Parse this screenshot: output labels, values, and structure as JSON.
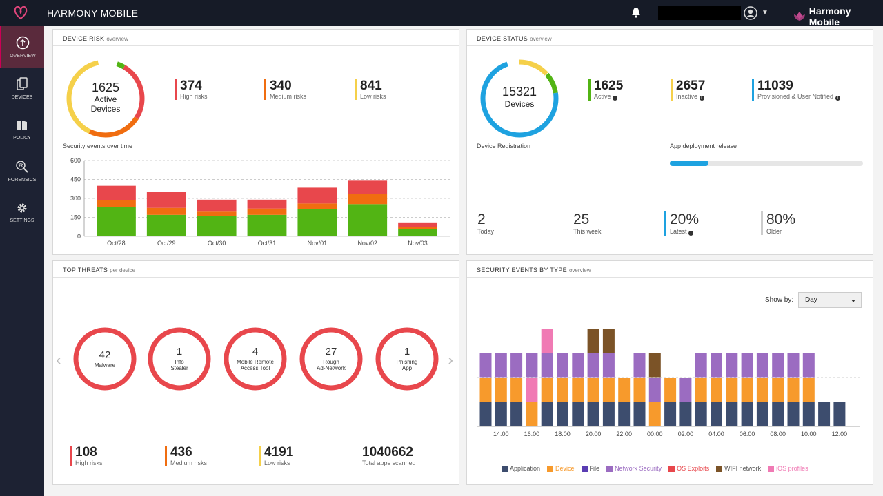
{
  "topbar": {
    "app_title": "HARMONY MOBILE",
    "brand_text": "Harmony Mobile"
  },
  "sidebar": {
    "items": [
      {
        "label": "OVERVIEW",
        "icon": "overview-icon"
      },
      {
        "label": "DEVICES",
        "icon": "devices-icon"
      },
      {
        "label": "POLICY",
        "icon": "policy-icon"
      },
      {
        "label": "FORENSICS",
        "icon": "forensics-icon"
      },
      {
        "label": "SETTINGS",
        "icon": "gear-icon"
      }
    ]
  },
  "device_risk": {
    "title": "DEVICE RISK",
    "subtitle": "overview",
    "donut": {
      "number": "1625",
      "line1": "Active",
      "line2": "Devices"
    },
    "high": {
      "value": "374",
      "label": "High risks"
    },
    "medium": {
      "value": "340",
      "label": "Medium risks"
    },
    "low": {
      "value": "841",
      "label": "Low risks"
    },
    "chart_title": "Security events over time"
  },
  "device_status": {
    "title": "DEVICE STATUS",
    "subtitle": "overview",
    "donut": {
      "number": "15321",
      "label": "Devices"
    },
    "active": {
      "value": "1625",
      "label": "Active"
    },
    "inactive": {
      "value": "2657",
      "label": "Inactive"
    },
    "provisioned": {
      "value": "11039",
      "label": "Provisioned & User Notified"
    },
    "registration_label": "Device Registration",
    "deployment_label": "App deployment release",
    "deployment_progress": 0.2,
    "today": {
      "value": "2",
      "label": "Today"
    },
    "week": {
      "value": "25",
      "label": "This week"
    },
    "latest": {
      "value": "20%",
      "label": "Latest"
    },
    "older": {
      "value": "80%",
      "label": "Older"
    }
  },
  "top_threats": {
    "title": "TOP THREATS",
    "subtitle": "per device",
    "items": [
      {
        "count": "42",
        "line1": "Malware",
        "line2": ""
      },
      {
        "count": "1",
        "line1": "Info",
        "line2": "Stealer"
      },
      {
        "count": "4",
        "line1": "Mobile Remote",
        "line2": "Access Tool"
      },
      {
        "count": "27",
        "line1": "Rough",
        "line2": "Ad-Network"
      },
      {
        "count": "1",
        "line1": "Phishing",
        "line2": "App"
      }
    ],
    "high": {
      "value": "108",
      "label": "High risks"
    },
    "medium": {
      "value": "436",
      "label": "Medium risks"
    },
    "low": {
      "value": "4191",
      "label": "Low risks"
    },
    "scanned": {
      "value": "1040662",
      "label": "Total apps scanned"
    }
  },
  "security_events": {
    "title": "SECURITY EVENTS BY TYPE",
    "subtitle": "overview",
    "show_by_label": "Show by:",
    "show_by_value": "Day"
  },
  "colors": {
    "high": "#e8474c",
    "medium": "#f06d10",
    "low": "#f5d04a",
    "green": "#52b414",
    "blue": "#1ea2e0"
  },
  "chart_data": [
    {
      "type": "bar",
      "title": "Security events over time",
      "categories": [
        "Oct/28",
        "Oct/29",
        "Oct/30",
        "Oct/31",
        "Nov/01",
        "Nov/02",
        "Nov/03"
      ],
      "series": [
        {
          "values": [
            230,
            170,
            160,
            170,
            215,
            255,
            55
          ],
          "color": "#52b414"
        },
        {
          "values": [
            55,
            55,
            35,
            50,
            45,
            80,
            20
          ],
          "color": "#f06d10"
        },
        {
          "values": [
            115,
            125,
            95,
            70,
            125,
            105,
            35
          ],
          "color": "#e8474c"
        }
      ],
      "ylim": [
        0,
        600
      ],
      "yticks": [
        0,
        150,
        300,
        450,
        600
      ]
    },
    {
      "type": "bar",
      "title": "Security events by type",
      "categories": [
        "13",
        "14",
        "15",
        "16",
        "17",
        "18",
        "19",
        "20",
        "21",
        "22",
        "23",
        "0",
        "1",
        "2",
        "3",
        "4",
        "5",
        "6",
        "7",
        "8",
        "9",
        "10",
        "11",
        "12"
      ],
      "xticks": [
        "14:00",
        "16:00",
        "18:00",
        "20:00",
        "22:00",
        "00:00",
        "02:00",
        "04:00",
        "06:00",
        "08:00",
        "10:00",
        "12:00"
      ],
      "series": [
        {
          "name": "Application",
          "color": "#3d4d6e",
          "values": [
            1,
            1,
            1,
            0,
            1,
            1,
            1,
            1,
            1,
            1,
            1,
            0,
            1,
            1,
            1,
            1,
            1,
            1,
            1,
            1,
            1,
            1,
            1,
            1
          ]
        },
        {
          "name": "Device",
          "color": "#f79a2c",
          "values": [
            1,
            1,
            1,
            1,
            1,
            1,
            1,
            1,
            1,
            1,
            1,
            1,
            1,
            0,
            1,
            1,
            1,
            1,
            1,
            1,
            1,
            1,
            0,
            0
          ]
        },
        {
          "name": "File",
          "color": "#5a3db3",
          "values": [
            0,
            0,
            0,
            0,
            0,
            0,
            0,
            0,
            0,
            0,
            0,
            0,
            0,
            0,
            0,
            0,
            0,
            0,
            0,
            0,
            0,
            0,
            0,
            0
          ]
        },
        {
          "name": "Network Security",
          "color": "#9b6cc1",
          "values": [
            1,
            1,
            1,
            1,
            1,
            1,
            1,
            1,
            1,
            0,
            1,
            1,
            0,
            1,
            1,
            1,
            1,
            1,
            1,
            1,
            1,
            1,
            0,
            0
          ]
        },
        {
          "name": "OS Exploits",
          "color": "#e8474c",
          "values": [
            0,
            0,
            0,
            0,
            0,
            0,
            0,
            0,
            0,
            0,
            0,
            0,
            0,
            0,
            0,
            0,
            0,
            0,
            0,
            0,
            0,
            0,
            0,
            0
          ]
        },
        {
          "name": "WIFI network",
          "color": "#7b5327",
          "values": [
            0,
            0,
            0,
            0,
            0,
            0,
            0,
            1,
            1,
            0,
            0,
            1,
            0,
            0,
            0,
            0,
            0,
            0,
            0,
            0,
            0,
            0,
            0,
            0
          ]
        },
        {
          "name": "iOS profiles",
          "color": "#f07ab4",
          "values": [
            0,
            0,
            0,
            1,
            1,
            0,
            0,
            0,
            0,
            0,
            0,
            0,
            0,
            0,
            0,
            0,
            0,
            0,
            0,
            0,
            0,
            0,
            0,
            0
          ]
        }
      ],
      "stack_order": {
        "3": [
          "Application",
          "Device",
          "iOS profiles",
          "Network Security"
        ],
        "4": [
          "Application",
          "Device",
          "Network Security",
          "iOS profiles"
        ],
        "11": [
          "Application",
          "Device",
          "Network Security",
          "WIFI network"
        ]
      },
      "ylim": [
        0,
        4
      ]
    }
  ]
}
